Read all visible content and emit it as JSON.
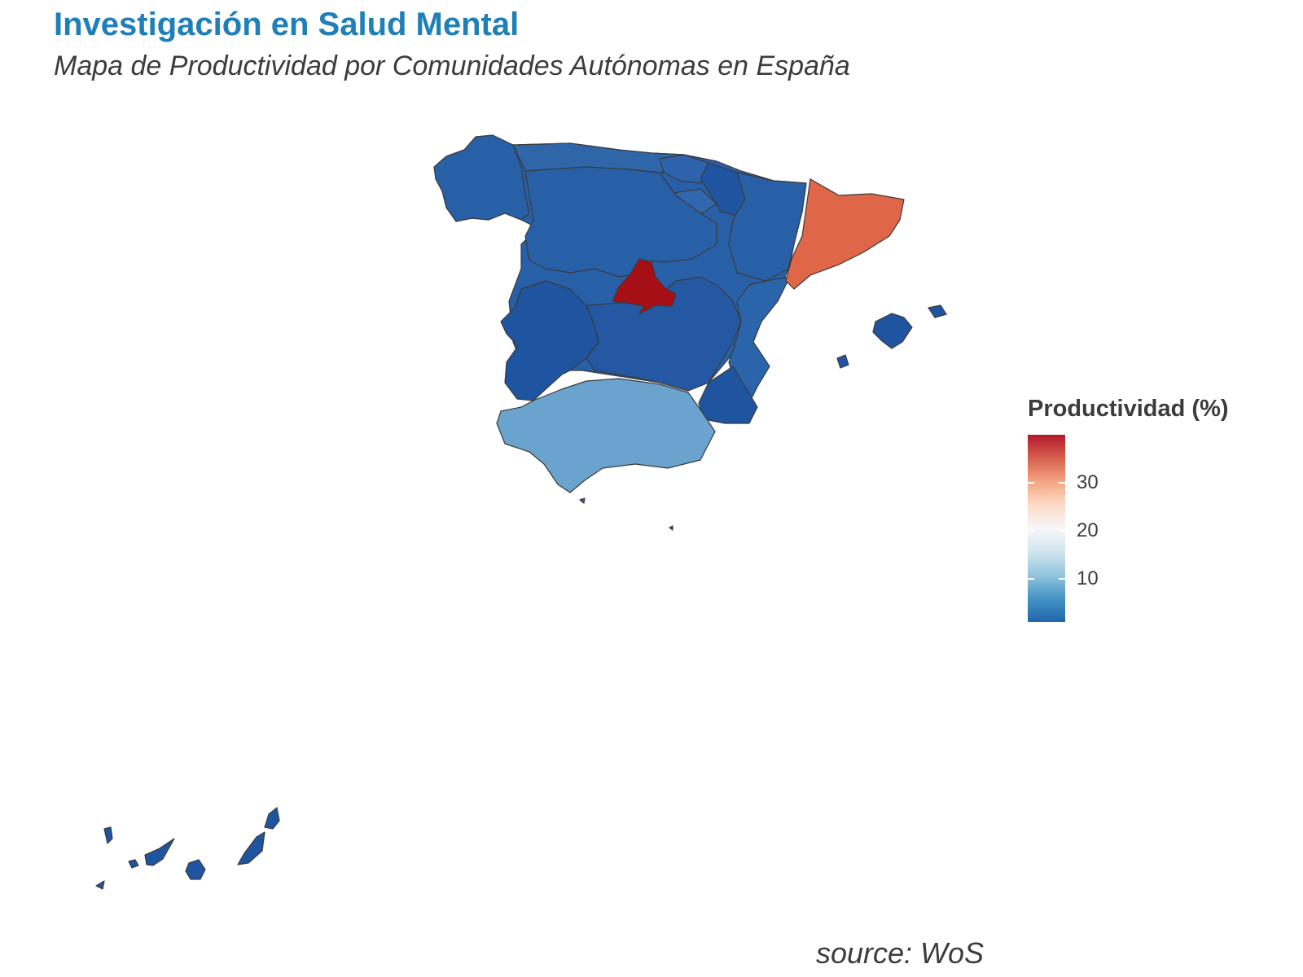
{
  "title": "Investigación en Salud Mental",
  "subtitle": "Mapa de Productividad por Comunidades Autónomas en España",
  "caption": "source: WoS",
  "legend": {
    "title": "Productividad (%)",
    "ticks": [
      "30",
      "20",
      "10"
    ],
    "tick_values": [
      30,
      20,
      10
    ],
    "range": [
      1,
      40
    ],
    "colors": [
      "#b2182b",
      "#d6604d",
      "#f4a582",
      "#fddbc7",
      "#f7f7f7",
      "#d1e5f0",
      "#92c5de",
      "#4393c3",
      "#2166ac"
    ]
  },
  "map_data": {
    "type": "choropleth",
    "regions": [
      {
        "name": "Madrid",
        "level": "highest",
        "color": "#a50f15"
      },
      {
        "name": "Cataluña",
        "level": "high",
        "color": "#e0664a"
      },
      {
        "name": "Andalucía",
        "level": "low-mid",
        "color": "#6ba3cf"
      },
      {
        "name": "Asturias / Cantabria",
        "level": "low",
        "color": "#2f65a9"
      },
      {
        "name": "Rest of Spain",
        "level": "lowest",
        "color": "#2860a8"
      },
      {
        "name": "Extremadura / Murcia / Canarias",
        "level": "lowest",
        "color": "#1f55a0"
      }
    ]
  }
}
